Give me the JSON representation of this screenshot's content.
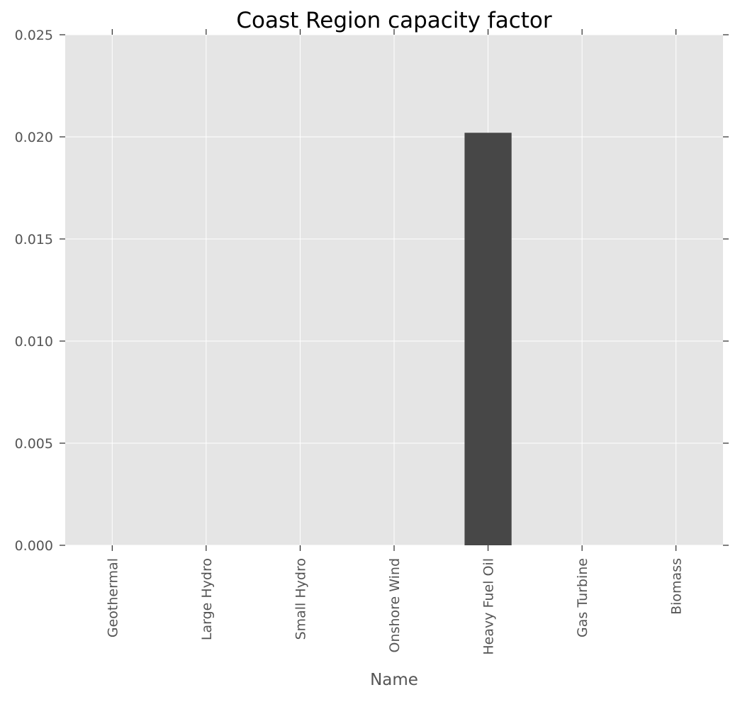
{
  "chart_data": {
    "type": "bar",
    "title": "Coast Region capacity factor",
    "xlabel": "Name",
    "ylabel": "",
    "categories": [
      "Geothermal",
      "Large Hydro",
      "Small Hydro",
      "Onshore Wind",
      "Heavy Fuel Oil",
      "Gas Turbine",
      "Biomass"
    ],
    "values": [
      0,
      0,
      0,
      0,
      0.0202,
      0,
      0
    ],
    "ylim": [
      0,
      0.025
    ],
    "yticks": [
      "0.000",
      "0.005",
      "0.010",
      "0.015",
      "0.020",
      "0.025"
    ],
    "grid": true,
    "legend": "none",
    "colors": {
      "bar": "#474747",
      "plot_background": "#e5e5e5",
      "grid": "#ffffff",
      "tick_text": "#555555",
      "title_text": "#000000"
    }
  }
}
